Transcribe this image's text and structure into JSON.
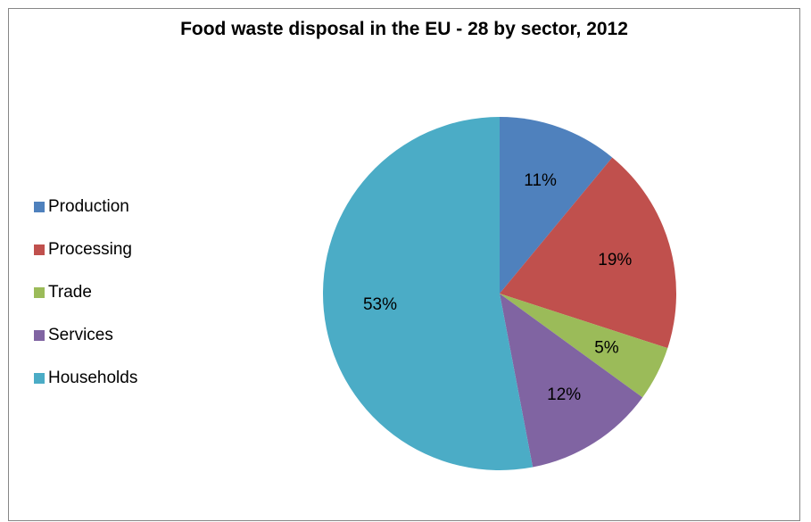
{
  "chart_data": {
    "type": "pie",
    "title": "Food waste disposal in the EU - 28 by sector, 2012",
    "categories": [
      "Production",
      "Processing",
      "Trade",
      "Services",
      "Households"
    ],
    "values": [
      11,
      19,
      5,
      12,
      53
    ],
    "labels": [
      "11%",
      "19%",
      "5%",
      "12%",
      "53%"
    ],
    "colors": [
      "#4F81BD",
      "#C0504D",
      "#9BBB59",
      "#8064A2",
      "#4BACC6"
    ],
    "legend_position": "left",
    "start_angle_deg": 0,
    "direction": "clockwise"
  }
}
